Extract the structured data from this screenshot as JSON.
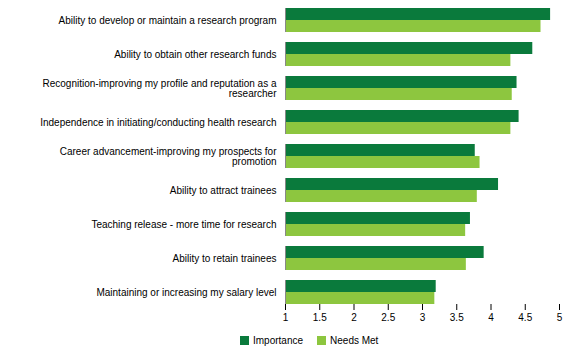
{
  "chart_data": {
    "type": "bar",
    "orientation": "horizontal",
    "grid": false,
    "legend": "bottom",
    "categories": [
      "Ability to develop or maintain a research program",
      "Ability to obtain other research funds",
      "Recognition-improving my profile and reputation as a researcher",
      "Independence in initiating/conducting health research",
      "Career advancement-improving my prospects for promotion",
      "Ability to attract trainees",
      "Teaching release - more time for research",
      "Ability to retain trainees",
      "Maintaining or increasing my salary level"
    ],
    "series": [
      {
        "name": "Importance",
        "color": "#0a7a3c",
        "values": [
          4.87,
          4.61,
          4.38,
          4.41,
          3.77,
          4.11,
          3.7,
          3.9,
          3.2
        ]
      },
      {
        "name": "Needs Met",
        "color": "#8dc63f",
        "values": [
          4.73,
          4.29,
          4.31,
          4.29,
          3.84,
          3.8,
          3.63,
          3.64,
          3.18
        ]
      }
    ],
    "xlim": [
      1,
      5
    ],
    "xticks": [
      1,
      1.5,
      2,
      2.5,
      3,
      3.5,
      4,
      4.5,
      5
    ]
  }
}
